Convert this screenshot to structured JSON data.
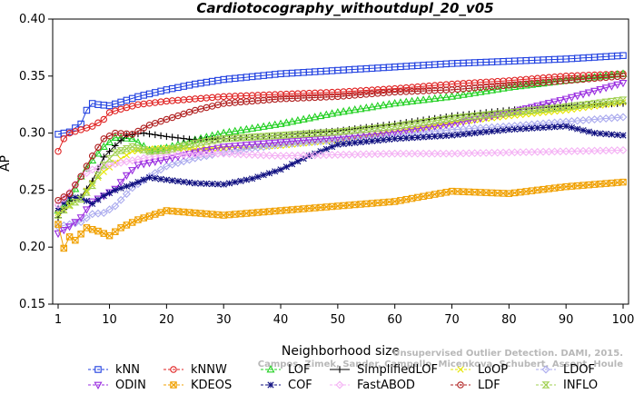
{
  "chart_data": {
    "type": "line",
    "title": "Cardiotocography_withoutdupl_20_v05",
    "xlabel": "Neighborhood size",
    "ylabel": "AP",
    "xlim": [
      1,
      100
    ],
    "ylim": [
      0.15,
      0.4
    ],
    "xticks": [
      "1",
      "10",
      "20",
      "30",
      "40",
      "50",
      "60",
      "70",
      "80",
      "90",
      "100"
    ],
    "xtick_values": [
      1,
      10,
      20,
      30,
      40,
      50,
      60,
      70,
      80,
      90,
      100
    ],
    "yticks": [
      "0.15",
      "0.20",
      "0.25",
      "0.30",
      "0.35",
      "0.40"
    ],
    "ytick_values": [
      0.15,
      0.2,
      0.25,
      0.3,
      0.35,
      0.4
    ],
    "grid": false,
    "legend_placement": "bottom",
    "watermark": "Campos, Zimek, Sander, Campello, Micenkova, Schubert, Assent, Houle",
    "watermark_line1": "Unsupervised Outlier Detection. DAMI, 2015.",
    "series": [
      {
        "name": "kNN",
        "color": "#1f3fe0",
        "marker": "square",
        "points": [
          [
            1,
            0.299
          ],
          [
            3,
            0.301
          ],
          [
            5,
            0.308
          ],
          [
            6,
            0.32
          ],
          [
            7,
            0.326
          ],
          [
            8,
            0.325
          ],
          [
            10,
            0.324
          ],
          [
            15,
            0.332
          ],
          [
            20,
            0.338
          ],
          [
            25,
            0.343
          ],
          [
            30,
            0.347
          ],
          [
            40,
            0.352
          ],
          [
            50,
            0.355
          ],
          [
            60,
            0.358
          ],
          [
            70,
            0.361
          ],
          [
            80,
            0.363
          ],
          [
            90,
            0.365
          ],
          [
            100,
            0.368
          ]
        ]
      },
      {
        "name": "kNNW",
        "color": "#e02020",
        "marker": "circle",
        "points": [
          [
            1,
            0.284
          ],
          [
            2,
            0.295
          ],
          [
            3,
            0.3
          ],
          [
            5,
            0.303
          ],
          [
            7,
            0.306
          ],
          [
            9,
            0.312
          ],
          [
            10,
            0.318
          ],
          [
            12,
            0.321
          ],
          [
            15,
            0.325
          ],
          [
            20,
            0.328
          ],
          [
            30,
            0.332
          ],
          [
            40,
            0.334
          ],
          [
            50,
            0.336
          ],
          [
            60,
            0.339
          ],
          [
            70,
            0.343
          ],
          [
            80,
            0.346
          ],
          [
            90,
            0.35
          ],
          [
            100,
            0.352
          ]
        ]
      },
      {
        "name": "LOF",
        "color": "#22d022",
        "marker": "triangle",
        "points": [
          [
            1,
            0.232
          ],
          [
            3,
            0.24
          ],
          [
            5,
            0.262
          ],
          [
            7,
            0.276
          ],
          [
            9,
            0.288
          ],
          [
            11,
            0.296
          ],
          [
            14,
            0.295
          ],
          [
            17,
            0.285
          ],
          [
            20,
            0.287
          ],
          [
            25,
            0.294
          ],
          [
            30,
            0.3
          ],
          [
            40,
            0.308
          ],
          [
            50,
            0.318
          ],
          [
            60,
            0.326
          ],
          [
            70,
            0.332
          ],
          [
            80,
            0.34
          ],
          [
            90,
            0.346
          ],
          [
            100,
            0.352
          ]
        ]
      },
      {
        "name": "SimplifiedLOF",
        "color": "#000000",
        "marker": "plus",
        "points": [
          [
            1,
            0.226
          ],
          [
            3,
            0.24
          ],
          [
            5,
            0.244
          ],
          [
            7,
            0.258
          ],
          [
            9,
            0.279
          ],
          [
            11,
            0.289
          ],
          [
            13,
            0.298
          ],
          [
            16,
            0.3
          ],
          [
            20,
            0.297
          ],
          [
            25,
            0.294
          ],
          [
            30,
            0.295
          ],
          [
            40,
            0.298
          ],
          [
            50,
            0.302
          ],
          [
            60,
            0.308
          ],
          [
            70,
            0.315
          ],
          [
            80,
            0.32
          ],
          [
            90,
            0.324
          ],
          [
            100,
            0.326
          ]
        ]
      },
      {
        "name": "LoOP",
        "color": "#e6e600",
        "marker": "x",
        "points": [
          [
            1,
            0.23
          ],
          [
            3,
            0.236
          ],
          [
            5,
            0.243
          ],
          [
            7,
            0.256
          ],
          [
            9,
            0.266
          ],
          [
            11,
            0.274
          ],
          [
            14,
            0.284
          ],
          [
            17,
            0.286
          ],
          [
            20,
            0.287
          ],
          [
            25,
            0.286
          ],
          [
            30,
            0.287
          ],
          [
            40,
            0.289
          ],
          [
            50,
            0.294
          ],
          [
            60,
            0.301
          ],
          [
            70,
            0.309
          ],
          [
            80,
            0.315
          ],
          [
            90,
            0.32
          ],
          [
            100,
            0.327
          ]
        ]
      },
      {
        "name": "LDOF",
        "color": "#aaaaee",
        "marker": "diamond",
        "points": [
          [
            1,
            0.218
          ],
          [
            3,
            0.22
          ],
          [
            5,
            0.222
          ],
          [
            7,
            0.229
          ],
          [
            9,
            0.23
          ],
          [
            11,
            0.236
          ],
          [
            14,
            0.252
          ],
          [
            17,
            0.262
          ],
          [
            20,
            0.271
          ],
          [
            25,
            0.278
          ],
          [
            30,
            0.283
          ],
          [
            40,
            0.29
          ],
          [
            50,
            0.294
          ],
          [
            60,
            0.298
          ],
          [
            70,
            0.303
          ],
          [
            80,
            0.306
          ],
          [
            90,
            0.31
          ],
          [
            100,
            0.314
          ]
        ]
      },
      {
        "name": "ODIN",
        "color": "#9a2ee0",
        "marker": "triangle-down",
        "points": [
          [
            1,
            0.212
          ],
          [
            3,
            0.218
          ],
          [
            5,
            0.226
          ],
          [
            7,
            0.24
          ],
          [
            9,
            0.245
          ],
          [
            11,
            0.251
          ],
          [
            13,
            0.263
          ],
          [
            15,
            0.272
          ],
          [
            20,
            0.277
          ],
          [
            25,
            0.283
          ],
          [
            30,
            0.288
          ],
          [
            40,
            0.292
          ],
          [
            50,
            0.296
          ],
          [
            60,
            0.301
          ],
          [
            70,
            0.308
          ],
          [
            80,
            0.318
          ],
          [
            90,
            0.33
          ],
          [
            100,
            0.344
          ]
        ]
      },
      {
        "name": "KDEOS",
        "color": "#f0a000",
        "marker": "square-x",
        "points": [
          [
            1,
            0.22
          ],
          [
            2,
            0.199
          ],
          [
            3,
            0.209
          ],
          [
            4,
            0.206
          ],
          [
            6,
            0.217
          ],
          [
            8,
            0.214
          ],
          [
            10,
            0.21
          ],
          [
            12,
            0.217
          ],
          [
            15,
            0.224
          ],
          [
            20,
            0.232
          ],
          [
            25,
            0.23
          ],
          [
            30,
            0.228
          ],
          [
            40,
            0.232
          ],
          [
            50,
            0.236
          ],
          [
            60,
            0.24
          ],
          [
            70,
            0.249
          ],
          [
            80,
            0.247
          ],
          [
            90,
            0.253
          ],
          [
            100,
            0.257
          ]
        ]
      },
      {
        "name": "COF",
        "color": "#101080",
        "marker": "star",
        "points": [
          [
            1,
            0.234
          ],
          [
            3,
            0.244
          ],
          [
            5,
            0.243
          ],
          [
            7,
            0.238
          ],
          [
            9,
            0.245
          ],
          [
            11,
            0.25
          ],
          [
            14,
            0.255
          ],
          [
            17,
            0.261
          ],
          [
            20,
            0.259
          ],
          [
            25,
            0.256
          ],
          [
            30,
            0.255
          ],
          [
            35,
            0.26
          ],
          [
            40,
            0.268
          ],
          [
            45,
            0.28
          ],
          [
            50,
            0.29
          ],
          [
            60,
            0.295
          ],
          [
            70,
            0.298
          ],
          [
            80,
            0.303
          ],
          [
            90,
            0.306
          ],
          [
            95,
            0.3
          ],
          [
            100,
            0.298
          ]
        ]
      },
      {
        "name": "FastABOD",
        "color": "#f4b0f4",
        "marker": "diamond",
        "points": [
          [
            1,
            0.237
          ],
          [
            3,
            0.248
          ],
          [
            5,
            0.262
          ],
          [
            7,
            0.268
          ],
          [
            9,
            0.271
          ],
          [
            11,
            0.273
          ],
          [
            14,
            0.276
          ],
          [
            17,
            0.279
          ],
          [
            20,
            0.281
          ],
          [
            30,
            0.282
          ],
          [
            40,
            0.28
          ],
          [
            50,
            0.281
          ],
          [
            60,
            0.282
          ],
          [
            70,
            0.282
          ],
          [
            80,
            0.283
          ],
          [
            90,
            0.284
          ],
          [
            100,
            0.285
          ]
        ]
      },
      {
        "name": "LDF",
        "color": "#b02020",
        "marker": "circle-dot",
        "points": [
          [
            1,
            0.241
          ],
          [
            3,
            0.247
          ],
          [
            5,
            0.262
          ],
          [
            7,
            0.28
          ],
          [
            9,
            0.295
          ],
          [
            11,
            0.3
          ],
          [
            14,
            0.299
          ],
          [
            17,
            0.307
          ],
          [
            20,
            0.312
          ],
          [
            25,
            0.32
          ],
          [
            30,
            0.326
          ],
          [
            40,
            0.33
          ],
          [
            50,
            0.332
          ],
          [
            60,
            0.336
          ],
          [
            70,
            0.338
          ],
          [
            80,
            0.342
          ],
          [
            90,
            0.346
          ],
          [
            100,
            0.35
          ]
        ]
      },
      {
        "name": "INFLO",
        "color": "#a0d050",
        "marker": "hourglass",
        "points": [
          [
            1,
            0.228
          ],
          [
            3,
            0.237
          ],
          [
            5,
            0.242
          ],
          [
            7,
            0.254
          ],
          [
            9,
            0.272
          ],
          [
            11,
            0.283
          ],
          [
            14,
            0.288
          ],
          [
            17,
            0.284
          ],
          [
            20,
            0.285
          ],
          [
            25,
            0.291
          ],
          [
            30,
            0.295
          ],
          [
            40,
            0.298
          ],
          [
            50,
            0.301
          ],
          [
            60,
            0.306
          ],
          [
            70,
            0.313
          ],
          [
            80,
            0.318
          ],
          [
            90,
            0.323
          ],
          [
            100,
            0.329
          ]
        ]
      }
    ]
  }
}
